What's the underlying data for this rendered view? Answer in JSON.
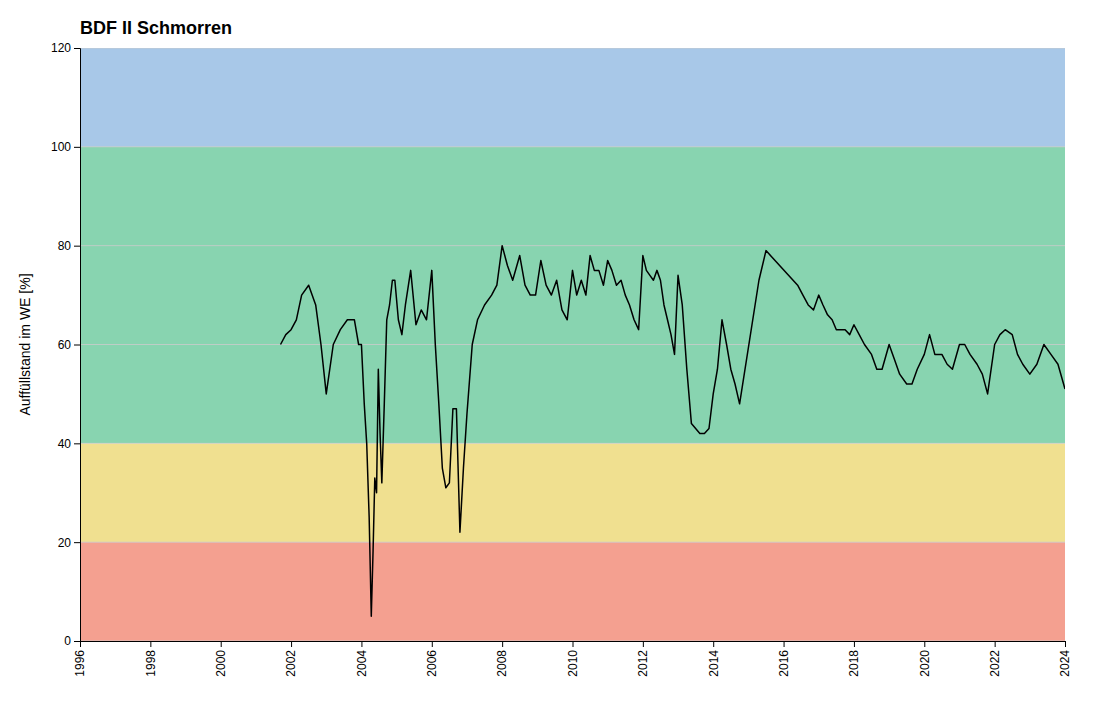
{
  "chart_data": {
    "type": "line",
    "title": "BDF II Schmorren",
    "y_label": "Auffüllstand im WE [%]",
    "x": [
      2001.7,
      2001.85,
      2002.0,
      2002.15,
      2002.3,
      2002.5,
      2002.7,
      2002.85,
      2003.0,
      2003.2,
      2003.4,
      2003.6,
      2003.8,
      2003.92,
      2004.0,
      2004.08,
      2004.15,
      2004.22,
      2004.28,
      2004.33,
      2004.38,
      2004.43,
      2004.48,
      2004.53,
      2004.58,
      2004.65,
      2004.72,
      2004.8,
      2004.88,
      2004.95,
      2005.05,
      2005.15,
      2005.25,
      2005.4,
      2005.55,
      2005.7,
      2005.85,
      2006.0,
      2006.1,
      2006.2,
      2006.3,
      2006.4,
      2006.5,
      2006.6,
      2006.7,
      2006.8,
      2006.9,
      2007.0,
      2007.15,
      2007.3,
      2007.5,
      2007.7,
      2007.85,
      2008.0,
      2008.15,
      2008.3,
      2008.5,
      2008.65,
      2008.8,
      2008.95,
      2009.1,
      2009.25,
      2009.4,
      2009.55,
      2009.7,
      2009.85,
      2010.0,
      2010.12,
      2010.25,
      2010.38,
      2010.5,
      2010.62,
      2010.75,
      2010.88,
      2011.0,
      2011.12,
      2011.25,
      2011.38,
      2011.5,
      2011.62,
      2011.75,
      2011.88,
      2012.0,
      2012.1,
      2012.2,
      2012.3,
      2012.4,
      2012.5,
      2012.6,
      2012.7,
      2012.8,
      2012.9,
      2013.0,
      2013.12,
      2013.25,
      2013.38,
      2013.5,
      2013.62,
      2013.75,
      2013.88,
      2014.0,
      2014.12,
      2014.25,
      2014.38,
      2014.5,
      2014.62,
      2014.75,
      2015.3,
      2015.5,
      2016.4,
      2016.55,
      2016.7,
      2016.85,
      2017.0,
      2017.12,
      2017.25,
      2017.38,
      2017.5,
      2017.62,
      2017.75,
      2017.88,
      2018.0,
      2018.15,
      2018.3,
      2018.5,
      2018.65,
      2018.8,
      2019.0,
      2019.15,
      2019.3,
      2019.5,
      2019.65,
      2019.8,
      2020.0,
      2020.15,
      2020.3,
      2020.5,
      2020.65,
      2020.8,
      2021.0,
      2021.15,
      2021.3,
      2021.5,
      2021.65,
      2021.8,
      2022.0,
      2022.15,
      2022.3,
      2022.5,
      2022.65,
      2022.8,
      2023.0,
      2023.2,
      2023.4,
      2023.6,
      2023.8,
      2024.0
    ],
    "values": [
      60,
      62,
      63,
      65,
      70,
      72,
      68,
      60,
      50,
      60,
      63,
      65,
      65,
      60,
      60,
      48,
      40,
      25,
      5,
      18,
      33,
      30,
      55,
      42,
      32,
      48,
      65,
      68,
      73,
      73,
      65,
      62,
      68,
      75,
      64,
      67,
      65,
      75,
      60,
      48,
      35,
      31,
      32,
      47,
      47,
      22,
      35,
      46,
      60,
      65,
      68,
      70,
      72,
      80,
      76,
      73,
      78,
      72,
      70,
      70,
      77,
      72,
      70,
      73,
      67,
      65,
      75,
      70,
      73,
      70,
      78,
      75,
      75,
      72,
      77,
      75,
      72,
      73,
      70,
      68,
      65,
      63,
      78,
      75,
      74,
      73,
      75,
      73,
      68,
      65,
      62,
      58,
      74,
      68,
      55,
      44,
      43,
      42,
      42,
      43,
      50,
      55,
      65,
      60,
      55,
      52,
      48,
      73,
      79,
      72,
      70,
      68,
      67,
      70,
      68,
      66,
      65,
      63,
      63,
      63,
      62,
      64,
      62,
      60,
      58,
      55,
      55,
      60,
      57,
      54,
      52,
      52,
      55,
      58,
      62,
      58,
      58,
      56,
      55,
      60,
      60,
      58,
      56,
      54,
      50,
      60,
      62,
      63,
      62,
      58,
      56,
      54,
      56,
      60,
      58,
      56,
      51
    ],
    "color": "#000000",
    "xlim": [
      1996,
      2024
    ],
    "ylim": [
      0,
      120
    ],
    "xticks": [
      1996,
      1998,
      2000,
      2002,
      2004,
      2006,
      2008,
      2010,
      2012,
      2014,
      2016,
      2018,
      2020,
      2022,
      2024
    ],
    "yticks": [
      0,
      20,
      40,
      60,
      80,
      100,
      120
    ],
    "grid": "y",
    "bands": [
      {
        "y": [
          100,
          120
        ],
        "color": "#a8c8e8"
      },
      {
        "y": [
          40,
          100
        ],
        "color": "#88d4b0"
      },
      {
        "y": [
          20,
          40
        ],
        "color": "#f0e090"
      },
      {
        "y": [
          0,
          20
        ],
        "color": "#f4a090"
      }
    ]
  }
}
